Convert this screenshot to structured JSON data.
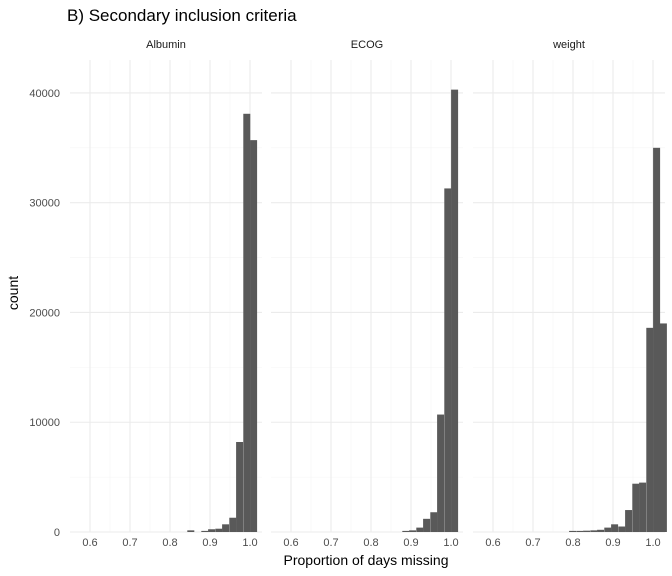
{
  "chart_data": {
    "type": "bar",
    "title": "B) Secondary inclusion criteria",
    "xlabel": "Proportion of days missing",
    "ylabel": "count",
    "xlim": [
      0.55,
      1.03
    ],
    "ylim": [
      0,
      43000
    ],
    "x_ticks": [
      0.6,
      0.7,
      0.8,
      0.9,
      1.0
    ],
    "x_tick_labels": [
      "0.6",
      "0.7",
      "0.8",
      "0.9",
      "1.0"
    ],
    "y_ticks": [
      0,
      10000,
      20000,
      30000,
      40000
    ],
    "y_tick_labels": [
      "0",
      "10000",
      "20000",
      "30000",
      "40000"
    ],
    "grid": true,
    "bin_width": 0.0175,
    "facets": [
      {
        "label": "Albumin",
        "bins": [
          {
            "x": 0.852,
            "count": 150
          },
          {
            "x": 0.887,
            "count": 100
          },
          {
            "x": 0.904,
            "count": 250
          },
          {
            "x": 0.922,
            "count": 300
          },
          {
            "x": 0.939,
            "count": 700
          },
          {
            "x": 0.957,
            "count": 1300
          },
          {
            "x": 0.974,
            "count": 8200
          },
          {
            "x": 0.992,
            "count": 38100
          },
          {
            "x": 1.009,
            "count": 35700
          }
        ]
      },
      {
        "label": "ECOG",
        "bins": [
          {
            "x": 0.887,
            "count": 100
          },
          {
            "x": 0.904,
            "count": 150
          },
          {
            "x": 0.922,
            "count": 400
          },
          {
            "x": 0.939,
            "count": 1200
          },
          {
            "x": 0.957,
            "count": 1800
          },
          {
            "x": 0.974,
            "count": 10700
          },
          {
            "x": 0.992,
            "count": 31300
          },
          {
            "x": 1.009,
            "count": 40300
          }
        ]
      },
      {
        "label": "weight",
        "bins": [
          {
            "x": 0.799,
            "count": 100
          },
          {
            "x": 0.817,
            "count": 100
          },
          {
            "x": 0.834,
            "count": 120
          },
          {
            "x": 0.852,
            "count": 150
          },
          {
            "x": 0.869,
            "count": 200
          },
          {
            "x": 0.887,
            "count": 400
          },
          {
            "x": 0.904,
            "count": 700
          },
          {
            "x": 0.922,
            "count": 500
          },
          {
            "x": 0.939,
            "count": 2000
          },
          {
            "x": 0.957,
            "count": 4400
          },
          {
            "x": 0.974,
            "count": 4500
          },
          {
            "x": 0.992,
            "count": 18600
          },
          {
            "x": 1.009,
            "count": 35000
          },
          {
            "x": 1.026,
            "count": 19000
          }
        ]
      }
    ]
  }
}
